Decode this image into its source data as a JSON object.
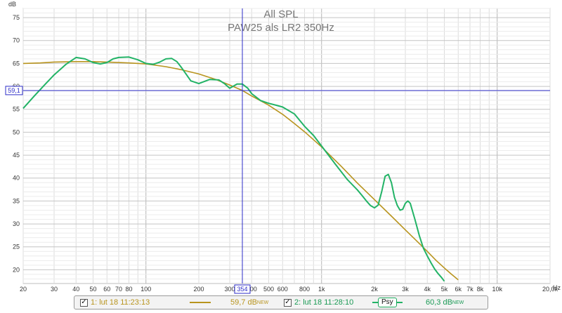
{
  "chart_data": {
    "type": "line",
    "title": "All SPL",
    "subtitle": "PAW25 als LR2 350Hz",
    "ylabel": "dB",
    "xlabel_unit": "Hz",
    "x_scale": "log",
    "xlim": [
      20,
      20000
    ],
    "ylim": [
      17,
      77
    ],
    "x_ticks": [
      {
        "v": 20,
        "label": "20"
      },
      {
        "v": 30,
        "label": "30"
      },
      {
        "v": 40,
        "label": "40"
      },
      {
        "v": 50,
        "label": "50"
      },
      {
        "v": 60,
        "label": "60"
      },
      {
        "v": 70,
        "label": "70"
      },
      {
        "v": 80,
        "label": "80"
      },
      {
        "v": 100,
        "label": "100"
      },
      {
        "v": 200,
        "label": "200"
      },
      {
        "v": 300,
        "label": "300"
      },
      {
        "v": 400,
        "label": "400"
      },
      {
        "v": 500,
        "label": "500"
      },
      {
        "v": 600,
        "label": "600"
      },
      {
        "v": 800,
        "label": "800"
      },
      {
        "v": 1000,
        "label": "1k"
      },
      {
        "v": 2000,
        "label": "2k"
      },
      {
        "v": 3000,
        "label": "3k"
      },
      {
        "v": 4000,
        "label": "4k"
      },
      {
        "v": 5000,
        "label": "5k"
      },
      {
        "v": 6000,
        "label": "6k"
      },
      {
        "v": 7000,
        "label": "7k"
      },
      {
        "v": 8000,
        "label": "8k"
      },
      {
        "v": 10000,
        "label": "10k"
      },
      {
        "v": 20000,
        "label": "20,0k"
      }
    ],
    "y_ticks": [
      20,
      25,
      30,
      35,
      40,
      45,
      50,
      55,
      60,
      65,
      70,
      75
    ],
    "grid": true,
    "cursor": {
      "x": 354,
      "x_label": "354",
      "y": 59.1,
      "y_label": "59,1"
    },
    "series": [
      {
        "name": "1: lut 18 11:23:13",
        "color": "#b8941e",
        "x": [
          20,
          25,
          30,
          40,
          50,
          60,
          70,
          80,
          100,
          130,
          160,
          200,
          250,
          300,
          354,
          400,
          500,
          600,
          700,
          800,
          1000,
          1300,
          1600,
          2000,
          2500,
          3000,
          3500,
          4000,
          4500,
          5000,
          5500,
          6000
        ],
        "y": [
          65.0,
          65.1,
          65.3,
          65.4,
          65.4,
          65.3,
          65.2,
          65.1,
          64.9,
          64.3,
          63.6,
          62.7,
          61.5,
          60.3,
          59.1,
          57.9,
          55.9,
          53.9,
          51.9,
          50.1,
          46.8,
          42.5,
          38.9,
          35.3,
          31.7,
          28.7,
          26.2,
          24.0,
          22.0,
          20.4,
          19.0,
          17.8
        ]
      },
      {
        "name": "2: lut 18 11:28:10",
        "color": "#22b366",
        "x": [
          20,
          23,
          26,
          30,
          35,
          40,
          45,
          50,
          55,
          60,
          65,
          70,
          80,
          90,
          100,
          110,
          120,
          130,
          140,
          150,
          160,
          180,
          200,
          230,
          260,
          280,
          300,
          330,
          354,
          380,
          400,
          450,
          500,
          550,
          600,
          700,
          800,
          900,
          1000,
          1200,
          1400,
          1600,
          1700,
          1800,
          1900,
          2000,
          2100,
          2200,
          2300,
          2400,
          2500,
          2600,
          2700,
          2800,
          2900,
          3000,
          3100,
          3200,
          3400,
          3600,
          3800,
          4000,
          4200,
          4400,
          4600,
          4800,
          5000
        ],
        "y": [
          55.2,
          57.8,
          60.0,
          62.5,
          64.8,
          66.3,
          66.0,
          65.2,
          64.9,
          65.2,
          66.0,
          66.3,
          66.4,
          65.8,
          65.0,
          64.8,
          65.3,
          66.0,
          66.1,
          65.4,
          64.0,
          61.2,
          60.6,
          61.5,
          61.4,
          60.6,
          59.6,
          60.5,
          60.5,
          59.6,
          58.4,
          56.9,
          56.3,
          55.9,
          55.5,
          54.0,
          51.3,
          49.3,
          47.0,
          43.0,
          39.7,
          37.4,
          36.2,
          35.0,
          34.0,
          33.5,
          34.1,
          37.0,
          40.4,
          40.8,
          39.0,
          35.8,
          34.0,
          33.0,
          33.2,
          34.5,
          35.0,
          34.5,
          31.0,
          27.5,
          24.7,
          23.0,
          21.5,
          20.2,
          19.2,
          18.4,
          17.5
        ]
      }
    ]
  },
  "legend": [
    {
      "checked": "✓",
      "label": "1: lut 18 11:23:13",
      "value": "59,7 dB",
      "badge": "NEW",
      "color": "#b8941e"
    },
    {
      "checked": "✓",
      "label": "2: lut 18 11:28:10",
      "psy": "Psy",
      "value": "60,3 dB",
      "badge": "NEW",
      "color": "#22b366"
    }
  ]
}
